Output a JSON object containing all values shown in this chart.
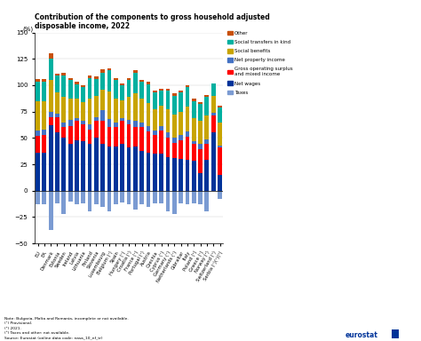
{
  "title": "Contribution of the components to gross household adjusted\ndisposable income, 2022",
  "ylabel": "(%)",
  "ylim": [
    -50,
    150
  ],
  "yticks": [
    -50,
    -25,
    0,
    25,
    50,
    75,
    100,
    125,
    150
  ],
  "countries": [
    "EU",
    "EA",
    "Denmark",
    "Estonia",
    "Sweden",
    "Ireland",
    "Latvia",
    "Lithuania",
    "Finland",
    "Slovenia",
    "Luxembourg",
    "Belgium (¹)",
    "Spain",
    "Hungary (¹)",
    "Croatia (¹)",
    "France (¹)",
    "Portugal (¹)",
    "Austria",
    "Czechia",
    "Cyprus (¹)",
    "Germany (¹)",
    "Netherlands (¹)",
    "Gibraltar",
    "Italy",
    "Poland (²)",
    "Greece (¹)",
    "Norway (²)",
    "Switzerland (³)",
    "Serbia (¹)(²)(³)"
  ],
  "taxes_color": "#7B9BD2",
  "net_wages_color": "#003399",
  "gross_op_color": "#FF0000",
  "net_prop_color": "#4472C4",
  "social_ben_color": "#C8A400",
  "social_trans_color": "#00B0A0",
  "other_color": "#C8500A",
  "taxes": [
    -13,
    -13,
    -37,
    -12,
    -22,
    -10,
    -13,
    -12,
    -20,
    -13,
    -15,
    -20,
    -13,
    -11,
    -13,
    -18,
    -13,
    -15,
    -12,
    -12,
    -20,
    -22,
    -12,
    -13,
    -12,
    -13,
    -20,
    0,
    -8
  ],
  "net_wages": [
    36,
    36,
    62,
    55,
    50,
    44,
    48,
    47,
    44,
    50,
    44,
    42,
    42,
    44,
    41,
    42,
    38,
    36,
    35,
    35,
    32,
    31,
    30,
    29,
    28,
    17,
    29,
    55,
    15
  ],
  "gross_op": [
    16,
    17,
    8,
    15,
    10,
    17,
    18,
    16,
    14,
    16,
    22,
    18,
    18,
    22,
    22,
    18,
    22,
    20,
    18,
    22,
    18,
    14,
    18,
    22,
    16,
    22,
    15,
    16,
    26
  ],
  "net_prop": [
    5,
    5,
    5,
    3,
    5,
    6,
    3,
    3,
    5,
    4,
    10,
    8,
    5,
    3,
    4,
    6,
    5,
    5,
    4,
    4,
    5,
    5,
    5,
    5,
    3,
    5,
    5,
    3,
    2
  ],
  "social_ben": [
    28,
    27,
    30,
    20,
    24,
    20,
    18,
    18,
    24,
    20,
    20,
    26,
    22,
    17,
    22,
    26,
    22,
    22,
    20,
    20,
    22,
    22,
    22,
    24,
    22,
    22,
    22,
    16,
    22
  ],
  "social_trans": [
    18,
    18,
    20,
    16,
    20,
    18,
    14,
    14,
    20,
    16,
    16,
    20,
    18,
    14,
    16,
    20,
    16,
    18,
    16,
    14,
    18,
    18,
    18,
    18,
    16,
    16,
    18,
    12,
    14
  ],
  "other": [
    3,
    3,
    5,
    2,
    3,
    2,
    2,
    2,
    2,
    2,
    3,
    2,
    2,
    2,
    2,
    2,
    2,
    2,
    2,
    2,
    2,
    2,
    2,
    2,
    2,
    2,
    2,
    0,
    2
  ],
  "note": "Note: Bulgaria, Malta and Romania, incomplete or not available.\n(¹) Provisional.\n(²) 2021.\n(³) Taxes and other: not available.\nSource: Eurostat (online data code: nasa_10_nf_tr)",
  "background_color": "#FFFFFF"
}
